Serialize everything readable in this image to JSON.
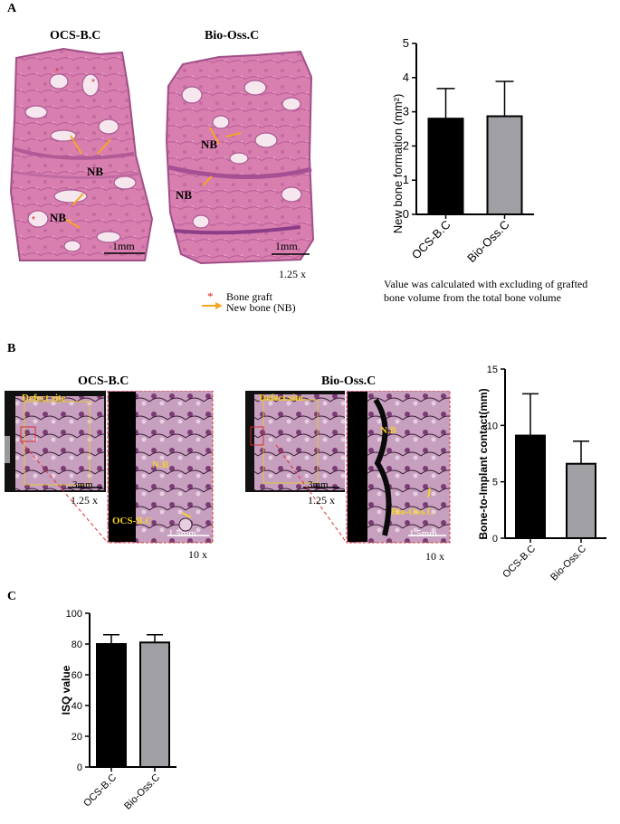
{
  "panel_a": {
    "letter": "A",
    "left_title": "OCS-B.C",
    "right_title": "Bio-Oss.C",
    "nb": "NB",
    "scale": "1mm",
    "magnification": "1.25 x",
    "legend": {
      "graft": "Bone graft",
      "new_bone": "New bone (NB)",
      "star": "*"
    },
    "note": "Value was calculated with excluding of grafted bone volume from the total bone volume"
  },
  "panel_b": {
    "letter": "B",
    "left_title": "OCS-B.C",
    "right_title": "Bio-Oss.C",
    "defect": "Defect site",
    "scale_low": "3mm",
    "scale_high": "1.5mm",
    "mag_low": "1.25 x",
    "mag_high": "10 x",
    "nb": "N.B",
    "graft_left": "OCS-B.C",
    "graft_right": "Bio-Oss.C"
  },
  "panel_c": {
    "letter": "C"
  },
  "colors": {
    "bar_black": "#000000",
    "bar_gray": "#a0a0a4",
    "arrow": "#f5a623",
    "star": "#e02020",
    "label_yellow": "#f2d22a"
  },
  "chart_data": [
    {
      "type": "bar",
      "categories": [
        "OCS-B.C",
        "Bio-Oss.C"
      ],
      "values": [
        2.8,
        2.87
      ],
      "errors": [
        0.88,
        1.02
      ],
      "ylabel": "New bone formation (mm²)",
      "ylim": [
        0,
        5
      ],
      "yticks": [
        "0",
        "1",
        "2",
        "3",
        "4",
        "5"
      ],
      "grid": false
    },
    {
      "type": "bar",
      "categories": [
        "OCS-B.C",
        "Bio-Oss.C"
      ],
      "values": [
        9.1,
        6.6
      ],
      "errors": [
        3.7,
        2.0
      ],
      "ylabel": "Bone-to-Implant contact(mm)",
      "ylim": [
        0,
        15
      ],
      "yticks": [
        "0",
        "5",
        "10",
        "15"
      ],
      "grid": false
    },
    {
      "type": "bar",
      "categories": [
        "OCS-B.C",
        "Bio-Oss.C"
      ],
      "values": [
        80,
        81
      ],
      "errors": [
        6,
        5
      ],
      "ylabel": "ISQ value",
      "ylim": [
        0,
        100
      ],
      "yticks": [
        "0",
        "20",
        "40",
        "60",
        "80",
        "100"
      ],
      "grid": false
    }
  ]
}
